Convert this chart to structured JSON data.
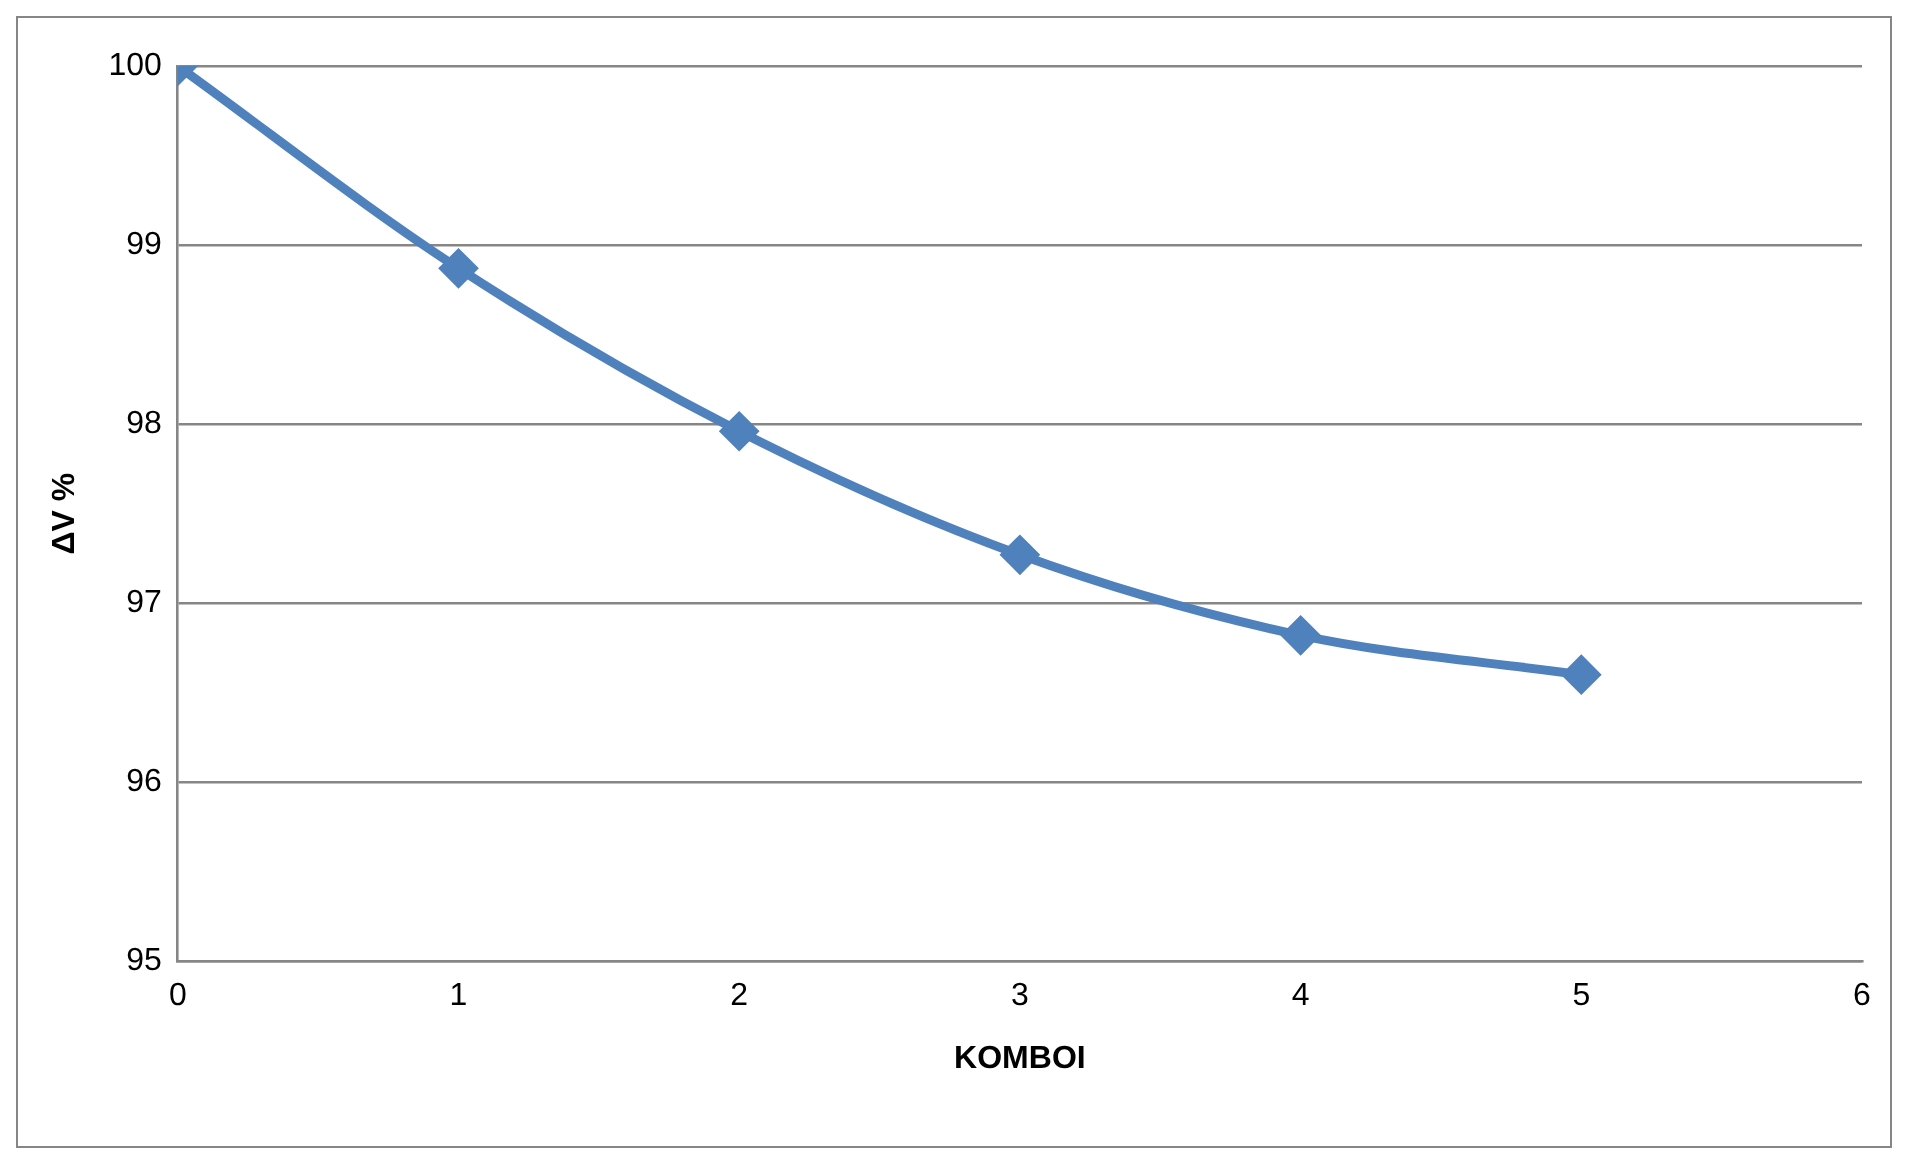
{
  "chart_data": {
    "type": "line",
    "xlabel": "KOMBOI",
    "ylabel": "ΔV %",
    "x": [
      0,
      1,
      2,
      3,
      4,
      5
    ],
    "series": [
      {
        "color": "#4f81bd",
        "values": [
          100,
          98.87,
          97.96,
          97.27,
          96.82,
          96.6
        ]
      }
    ],
    "xlim": [
      0,
      6
    ],
    "xticks": [
      0,
      1,
      2,
      3,
      4,
      5,
      6
    ],
    "ylim": [
      95,
      100
    ],
    "yticks": [
      95,
      96,
      97,
      98,
      99,
      100
    ],
    "grid": "y",
    "legend": false,
    "marker": "diamond",
    "line_style": "solid"
  }
}
